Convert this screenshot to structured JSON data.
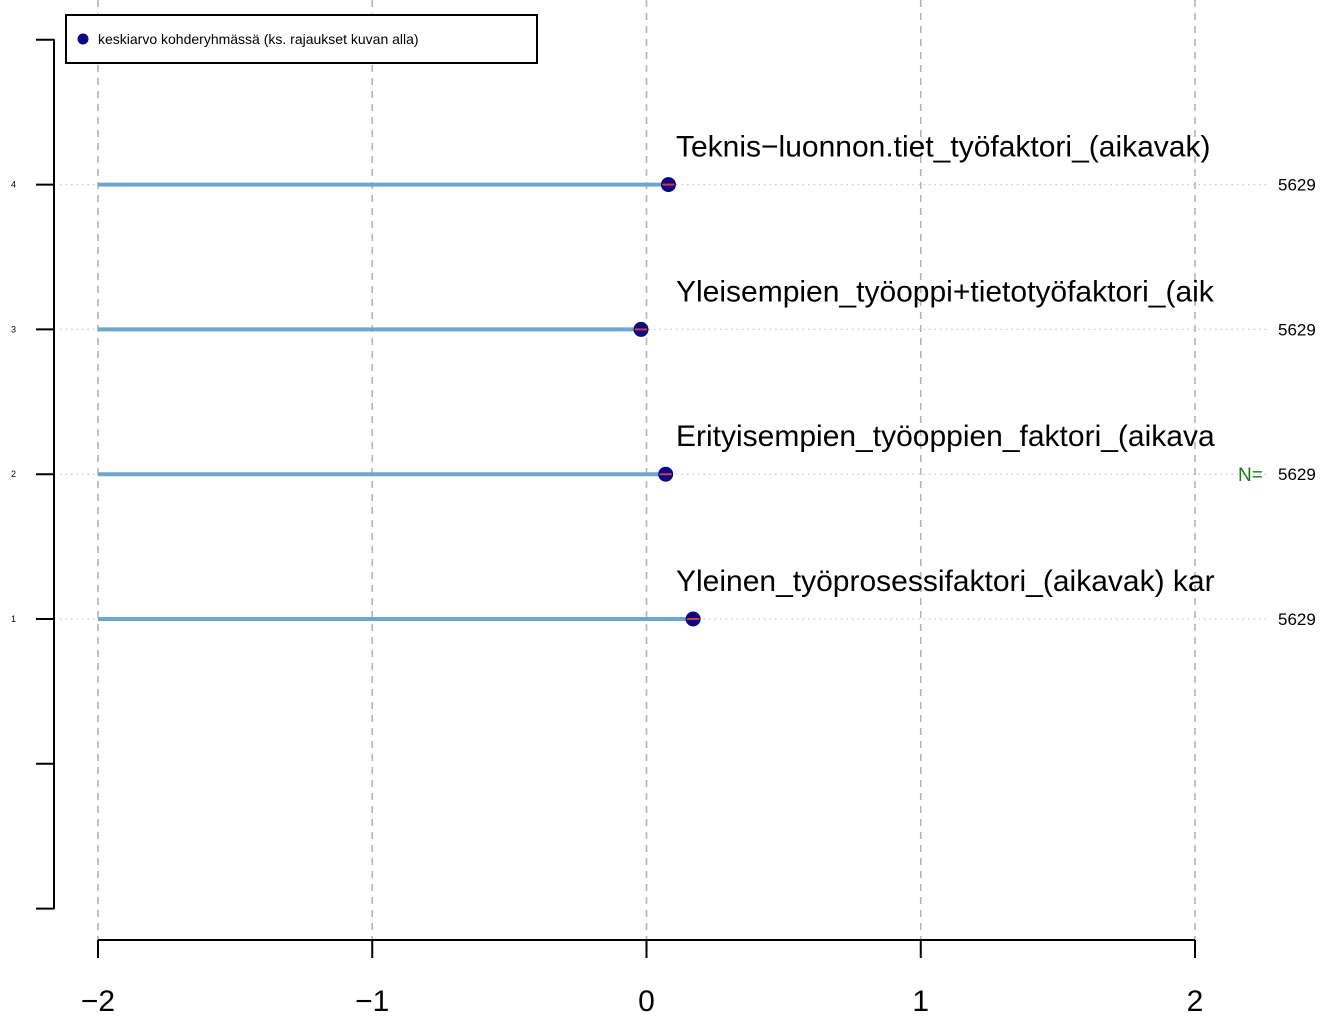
{
  "chart_data": {
    "type": "dot",
    "legend": {
      "label": "keskiarvo kohderyhmässä (ks. rajaukset kuvan alla)",
      "placement": "top-left",
      "color": "#0a0a87"
    },
    "xlim": [
      -2,
      2
    ],
    "x_ticks": [
      -2,
      -1,
      0,
      1,
      2
    ],
    "x_tick_labels": [
      "−2",
      "−1",
      "0",
      "1",
      "2"
    ],
    "y_ticks": [
      1,
      2,
      3,
      4
    ],
    "y_tick_labels": [
      "1",
      "2",
      "3",
      "4"
    ],
    "ylim": [
      -1,
      5
    ],
    "grid": true,
    "n_prefix": "N=",
    "series": [
      {
        "values": [
          {
            "y": 1,
            "label": "Yleinen_työprosessifaktori_(aikavak) kar",
            "mean": 0.17,
            "n": "5629"
          },
          {
            "y": 2,
            "label": "Erityisempien_työoppien_faktori_(aikava",
            "mean": 0.07,
            "n": "5629"
          },
          {
            "y": 3,
            "label": "Yleisempien_työoppi+tietotyöfaktori_(aik",
            "mean": -0.02,
            "n": "5629"
          },
          {
            "y": 4,
            "label": "Teknis−luonnon.tiet_työfaktori_(aikavak)",
            "mean": 0.08,
            "n": "5629"
          }
        ]
      }
    ],
    "colors": {
      "point": "#0a0a87",
      "bar": "#6ea7cd",
      "ci": "#d23c3c",
      "n_prefix": "#1a7a1a"
    }
  }
}
